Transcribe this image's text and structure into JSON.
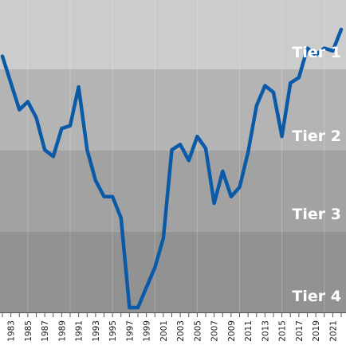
{
  "chart_data": {
    "type": "line",
    "title": "",
    "xlabel": "",
    "ylabel": "",
    "x": [
      1982,
      1983,
      1984,
      1985,
      1986,
      1987,
      1988,
      1989,
      1990,
      1991,
      1992,
      1993,
      1994,
      1995,
      1996,
      1997,
      1998,
      1999,
      2000,
      2001,
      2002,
      2003,
      2004,
      2005,
      2006,
      2007,
      2008,
      2009,
      2010,
      2011,
      2012,
      2013,
      2014,
      2015,
      2016,
      2017,
      2018,
      2019,
      2020,
      2021,
      2022
    ],
    "x_tick_labels": [
      "1983",
      "1985",
      "1987",
      "1989",
      "1991",
      "1993",
      "1995",
      "1997",
      "1999",
      "2001",
      "2003",
      "2005",
      "2007",
      "2009",
      "2011",
      "2013",
      "2015",
      "2017",
      "2019",
      "2021"
    ],
    "series": [
      {
        "values": [
          2,
          4,
          6,
          5.4,
          6.6,
          9,
          9.5,
          7.4,
          7.2,
          4.3,
          9,
          11.3,
          12.5,
          12.5,
          14.1,
          20.8,
          20.8,
          19.3,
          17.8,
          15.6,
          9,
          8.6,
          9.8,
          8,
          8.9,
          13,
          10.6,
          12.5,
          11.8,
          9.2,
          5.7,
          4.2,
          4.7,
          8,
          4,
          3.6,
          1.4,
          1.9,
          1.4,
          1.6,
          0
        ],
        "color": "#0a5aa8"
      }
    ],
    "tiers": [
      {
        "label": "Tier 1",
        "color": "#cccccc"
      },
      {
        "label": "Tier 2",
        "color": "#b4b4b4"
      },
      {
        "label": "Tier 3",
        "color": "#a2a2a2"
      },
      {
        "label": "Tier 4",
        "color": "#929292"
      }
    ],
    "y_inverted": true,
    "grid": true
  }
}
